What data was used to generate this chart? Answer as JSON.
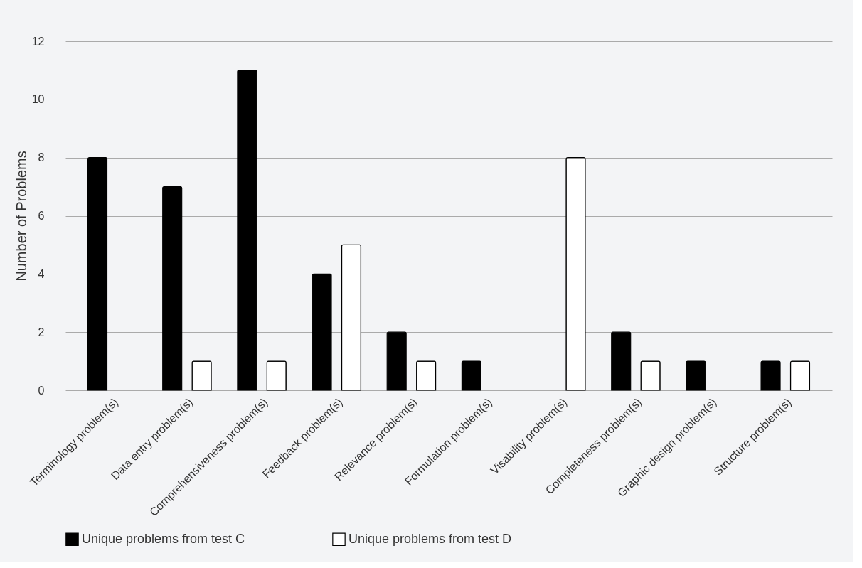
{
  "chart_data": {
    "type": "bar",
    "ylabel": "Number of Problems",
    "categories": [
      "Terminology problem(s)",
      "Data entry problem(s)",
      "Comprehensiveness problem(s)",
      "Feedback problem(s)",
      "Relevance problem(s)",
      "Formulation problem(s)",
      "Visability problem(s)",
      "Completeness problem(s)",
      "Graphic design problem(s)",
      "Structure problem(s)"
    ],
    "series": [
      {
        "name": "Unique problems from test C",
        "color": "#000000",
        "values": [
          8,
          7,
          11,
          4,
          2,
          1,
          null,
          2,
          1,
          1
        ]
      },
      {
        "name": "Unique problems from test D",
        "color": "#ffffff",
        "values": [
          null,
          1,
          1,
          5,
          1,
          null,
          8,
          1,
          null,
          1
        ]
      }
    ],
    "ylim": [
      0,
      12
    ],
    "yticks": [
      0,
      2,
      4,
      6,
      8,
      10,
      12
    ],
    "grid": "y",
    "legend": "bottom left"
  }
}
